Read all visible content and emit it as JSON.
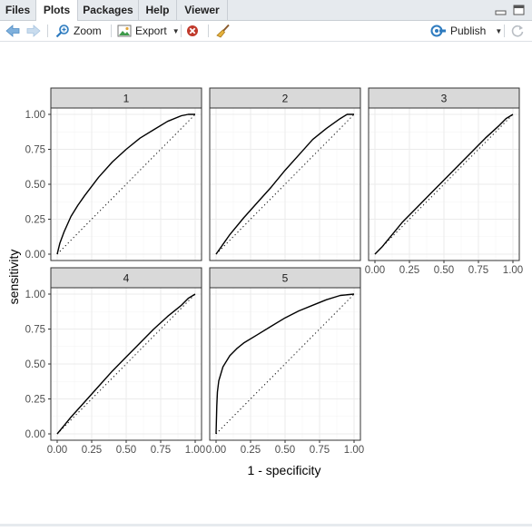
{
  "tabs": [
    {
      "label": "Files",
      "active": false
    },
    {
      "label": "Plots",
      "active": true
    },
    {
      "label": "Packages",
      "active": false
    },
    {
      "label": "Help",
      "active": false
    },
    {
      "label": "Viewer",
      "active": false
    }
  ],
  "toolbar": {
    "zoom_label": "Zoom",
    "export_label": "Export",
    "publish_label": "Publish"
  },
  "icons": {
    "back": "arrow-left-icon",
    "forward": "arrow-right-icon",
    "zoom": "magnifier-icon",
    "export": "export-image-icon",
    "remove": "red-x-circle-icon",
    "clear": "broom-icon",
    "publish": "publish-icon",
    "refresh": "refresh-icon",
    "minimize": "minimize-icon",
    "maximize": "maximize-icon"
  },
  "colors": {
    "accent_blue": "#2e7bbf",
    "remove_red": "#c0392b",
    "strip_fill": "#d9d9d9",
    "grid": "#ebebeb"
  },
  "chart_data": {
    "type": "line",
    "xlabel": "1 - specificity",
    "ylabel": "sensitivity",
    "xlim": [
      0,
      1
    ],
    "ylim": [
      0,
      1
    ],
    "x_ticks": [
      "0.00",
      "0.25",
      "0.50",
      "0.75",
      "1.00"
    ],
    "y_ticks": [
      "0.00",
      "0.25",
      "0.50",
      "0.75",
      "1.00"
    ],
    "grid": true,
    "facets": [
      {
        "label": "1",
        "curve": {
          "x": [
            0,
            0.02,
            0.05,
            0.1,
            0.15,
            0.2,
            0.3,
            0.4,
            0.5,
            0.6,
            0.7,
            0.8,
            0.9,
            0.95,
            1.0
          ],
          "y": [
            0,
            0.08,
            0.16,
            0.27,
            0.35,
            0.42,
            0.55,
            0.66,
            0.75,
            0.83,
            0.89,
            0.95,
            0.99,
            1.0,
            1.0
          ]
        }
      },
      {
        "label": "2",
        "curve": {
          "x": [
            0,
            0.05,
            0.1,
            0.2,
            0.3,
            0.4,
            0.5,
            0.6,
            0.7,
            0.8,
            0.9,
            0.95,
            1.0
          ],
          "y": [
            0,
            0.07,
            0.14,
            0.26,
            0.37,
            0.48,
            0.6,
            0.71,
            0.82,
            0.9,
            0.97,
            1.0,
            1.0
          ]
        }
      },
      {
        "label": "3",
        "curve": {
          "x": [
            0,
            0.05,
            0.1,
            0.2,
            0.3,
            0.4,
            0.5,
            0.6,
            0.7,
            0.8,
            0.9,
            0.95,
            1.0
          ],
          "y": [
            0,
            0.05,
            0.11,
            0.23,
            0.33,
            0.43,
            0.53,
            0.63,
            0.73,
            0.83,
            0.92,
            0.97,
            1.0
          ]
        }
      },
      {
        "label": "4",
        "curve": {
          "x": [
            0,
            0.05,
            0.1,
            0.2,
            0.3,
            0.4,
            0.5,
            0.6,
            0.7,
            0.8,
            0.9,
            0.95,
            1.0
          ],
          "y": [
            0,
            0.06,
            0.12,
            0.23,
            0.34,
            0.45,
            0.55,
            0.65,
            0.75,
            0.84,
            0.92,
            0.97,
            1.0
          ]
        }
      },
      {
        "label": "5",
        "curve": {
          "x": [
            0,
            0.005,
            0.01,
            0.02,
            0.05,
            0.1,
            0.15,
            0.2,
            0.3,
            0.4,
            0.5,
            0.6,
            0.7,
            0.8,
            0.9,
            1.0
          ],
          "y": [
            0,
            0.2,
            0.3,
            0.38,
            0.48,
            0.56,
            0.61,
            0.65,
            0.71,
            0.77,
            0.83,
            0.88,
            0.92,
            0.96,
            0.99,
            1.0
          ]
        }
      }
    ],
    "reference_line": "diagonal dotted"
  }
}
